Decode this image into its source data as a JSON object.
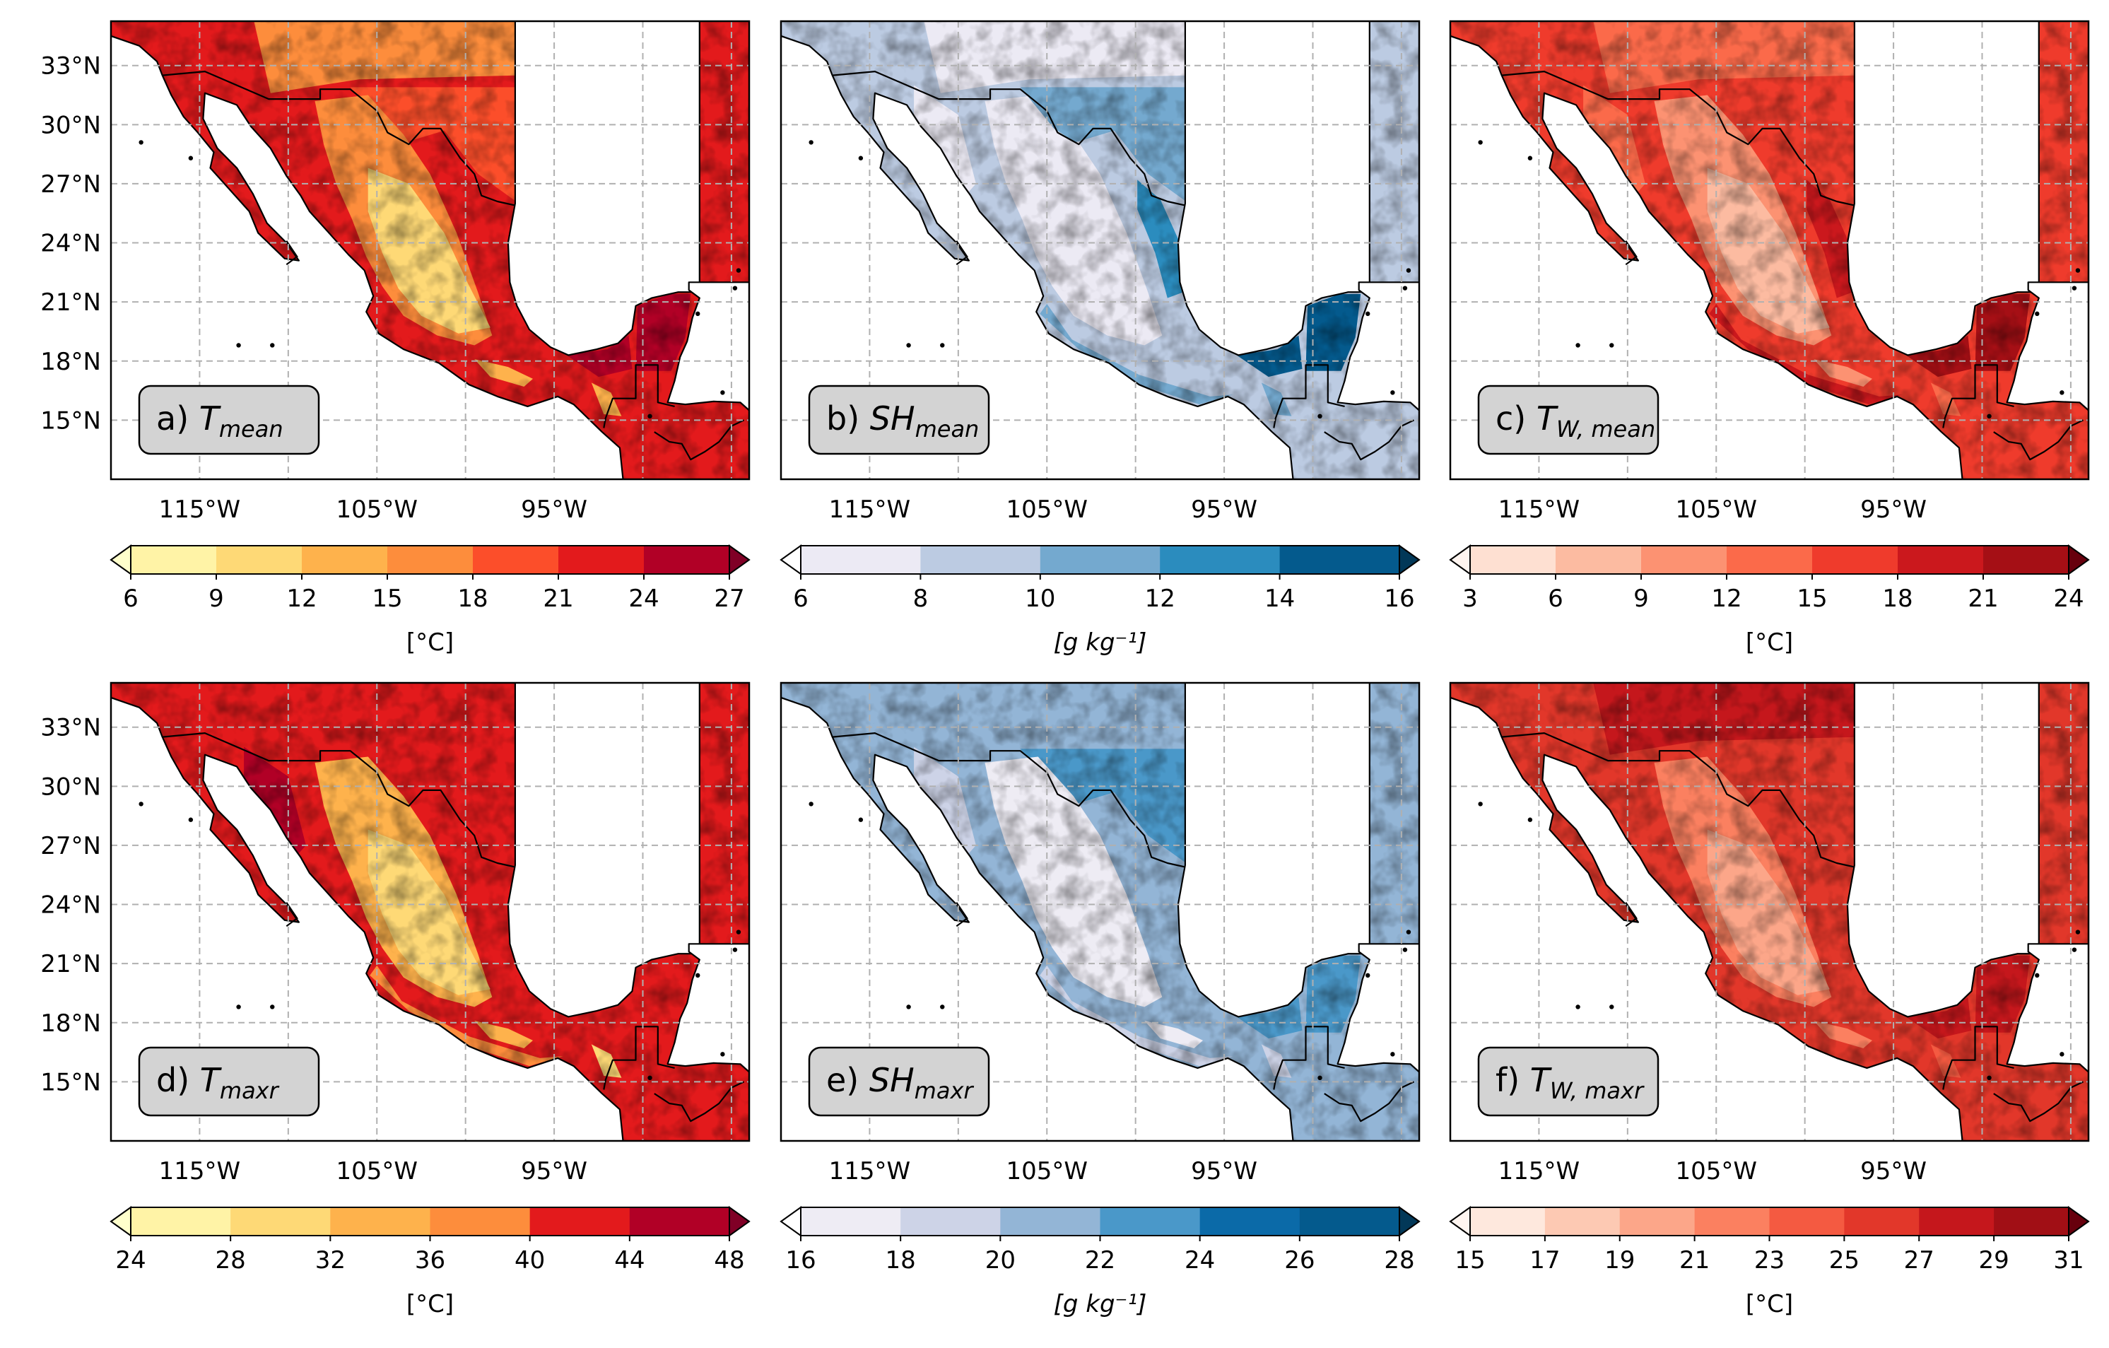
{
  "figure": {
    "lat_ticks": [
      "33°N",
      "30°N",
      "27°N",
      "24°N",
      "21°N",
      "18°N",
      "15°N"
    ],
    "lon_ticks": [
      "115°W",
      "105°W",
      "95°W"
    ],
    "colors": {
      "land_outline": "#000000",
      "water": "#ffffff",
      "grid": "#b0b0b0",
      "label_box_fill": "#d3d3d3"
    }
  },
  "panels": [
    {
      "id": "a",
      "prefix": "a) ",
      "symbol": "T",
      "subscript": "mean",
      "colormap": "YlOrRd",
      "colorbar": {
        "ticks": [
          "6",
          "9",
          "12",
          "15",
          "18",
          "21",
          "24",
          "27"
        ],
        "unit": "[°C]",
        "extend": "both",
        "colors": [
          "#ffffcc",
          "#fff3a6",
          "#fed976",
          "#feb24c",
          "#fd8d3c",
          "#fc4e2a",
          "#e31a1c",
          "#b10026",
          "#800026"
        ]
      }
    },
    {
      "id": "b",
      "prefix": "b) ",
      "symbol": "SH",
      "subscript": "mean",
      "colormap": "Blues",
      "colorbar": {
        "ticks": [
          "6",
          "8",
          "10",
          "12",
          "14",
          "16"
        ],
        "unit": "[g kg⁻¹]",
        "extend": "both",
        "colors": [
          "#ffffff",
          "#eceaf4",
          "#bccbe2",
          "#74a9cf",
          "#2b8cbe",
          "#045a8d",
          "#023858"
        ]
      }
    },
    {
      "id": "c",
      "prefix": "c) ",
      "symbol": "T",
      "subscript": "W, mean",
      "colormap": "Reds",
      "colorbar": {
        "ticks": [
          "3",
          "6",
          "9",
          "12",
          "15",
          "18",
          "21",
          "24"
        ],
        "unit": "[°C]",
        "extend": "both",
        "colors": [
          "#fff5f0",
          "#fee0d2",
          "#fcbba1",
          "#fc9272",
          "#fb6a4a",
          "#ef3b2c",
          "#cb181d",
          "#a50f15",
          "#67000d"
        ]
      }
    },
    {
      "id": "d",
      "prefix": "d) ",
      "symbol": "T",
      "subscript": "maxr",
      "colormap": "YlOrRd",
      "colorbar": {
        "ticks": [
          "24",
          "28",
          "32",
          "36",
          "40",
          "44",
          "48"
        ],
        "unit": "[°C]",
        "extend": "both",
        "colors": [
          "#ffffcc",
          "#fff3a6",
          "#fed976",
          "#feb24c",
          "#fd8d3c",
          "#e31a1c",
          "#b10026",
          "#800026"
        ]
      }
    },
    {
      "id": "e",
      "prefix": "e) ",
      "symbol": "SH",
      "subscript": "maxr",
      "colormap": "Blues",
      "colorbar": {
        "ticks": [
          "16",
          "18",
          "20",
          "22",
          "24",
          "26",
          "28"
        ],
        "unit": "[g kg⁻¹]",
        "extend": "both",
        "colors": [
          "#ffffff",
          "#eeecf4",
          "#cdd3e7",
          "#93b5d6",
          "#4a98c9",
          "#0b6aa8",
          "#045a8d",
          "#023858"
        ]
      }
    },
    {
      "id": "f",
      "prefix": "f) ",
      "symbol": "T",
      "subscript": "W, maxr",
      "colormap": "Reds",
      "colorbar": {
        "ticks": [
          "15",
          "17",
          "19",
          "21",
          "23",
          "25",
          "27",
          "29",
          "31"
        ],
        "unit": "[°C]",
        "extend": "both",
        "colors": [
          "#fff5f0",
          "#fee8dd",
          "#fdc9b3",
          "#fca689",
          "#fb8060",
          "#f45a41",
          "#e2372a",
          "#c5171c",
          "#a10f15",
          "#67000d"
        ]
      }
    }
  ]
}
